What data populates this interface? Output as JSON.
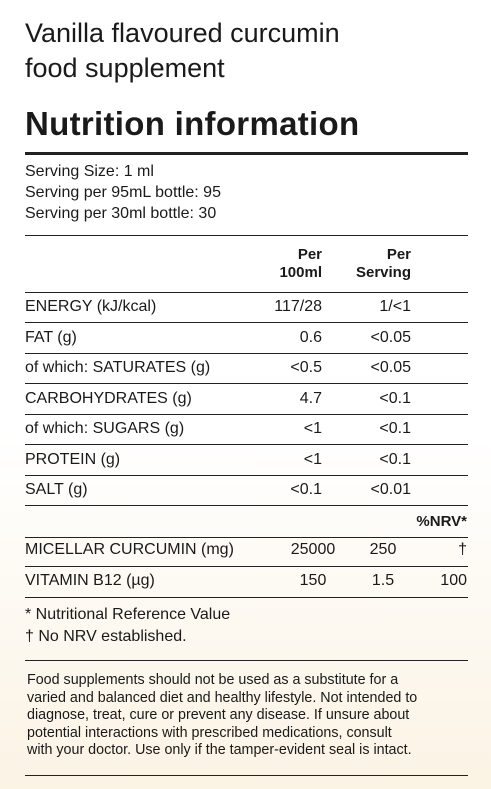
{
  "header": {
    "title_lines": [
      "Vanilla flavoured curcumin",
      "food supplement"
    ],
    "heading": "Nutrition information"
  },
  "serving": [
    "Serving Size: 1 ml",
    "Serving per 95mL bottle: 95",
    "Serving per 30ml bottle: 30"
  ],
  "table": {
    "columns": [
      [
        "Per",
        "100ml"
      ],
      [
        "Per",
        "Serving"
      ]
    ],
    "rows": [
      [
        "ENERGY (kJ/kcal)",
        "117/28",
        "1/<1"
      ],
      [
        "FAT (g)",
        "0.6",
        "<0.05"
      ],
      [
        "of which: SATURATES (g)",
        "<0.5",
        "<0.05"
      ],
      [
        "CARBOHYDRATES (g)",
        "4.7",
        "<0.1"
      ],
      [
        "of which: SUGARS (g)",
        "<1",
        "<0.1"
      ],
      [
        "PROTEIN (g)",
        "<1",
        "<0.1"
      ],
      [
        "SALT (g)",
        "<0.1",
        "<0.01"
      ]
    ]
  },
  "table2": {
    "nrv_header": "%NRV*",
    "rows": [
      [
        "MICELLAR CURCUMIN (mg)",
        "25000",
        "250",
        "†"
      ],
      [
        "VITAMIN B12 (µg)",
        "150",
        "1.5",
        "100"
      ]
    ]
  },
  "footnotes": [
    "* Nutritional Reference Value",
    "† No NRV established."
  ],
  "disclaimer": [
    "Food supplements should not be used as a substitute for a",
    "varied and balanced diet and healthy lifestyle. Not intended to",
    "diagnose, treat, cure or prevent any disease. If unsure about",
    "potential interactions with prescribed medications, consult",
    "with your doctor. Use only if the tamper-evident seal is intact."
  ]
}
